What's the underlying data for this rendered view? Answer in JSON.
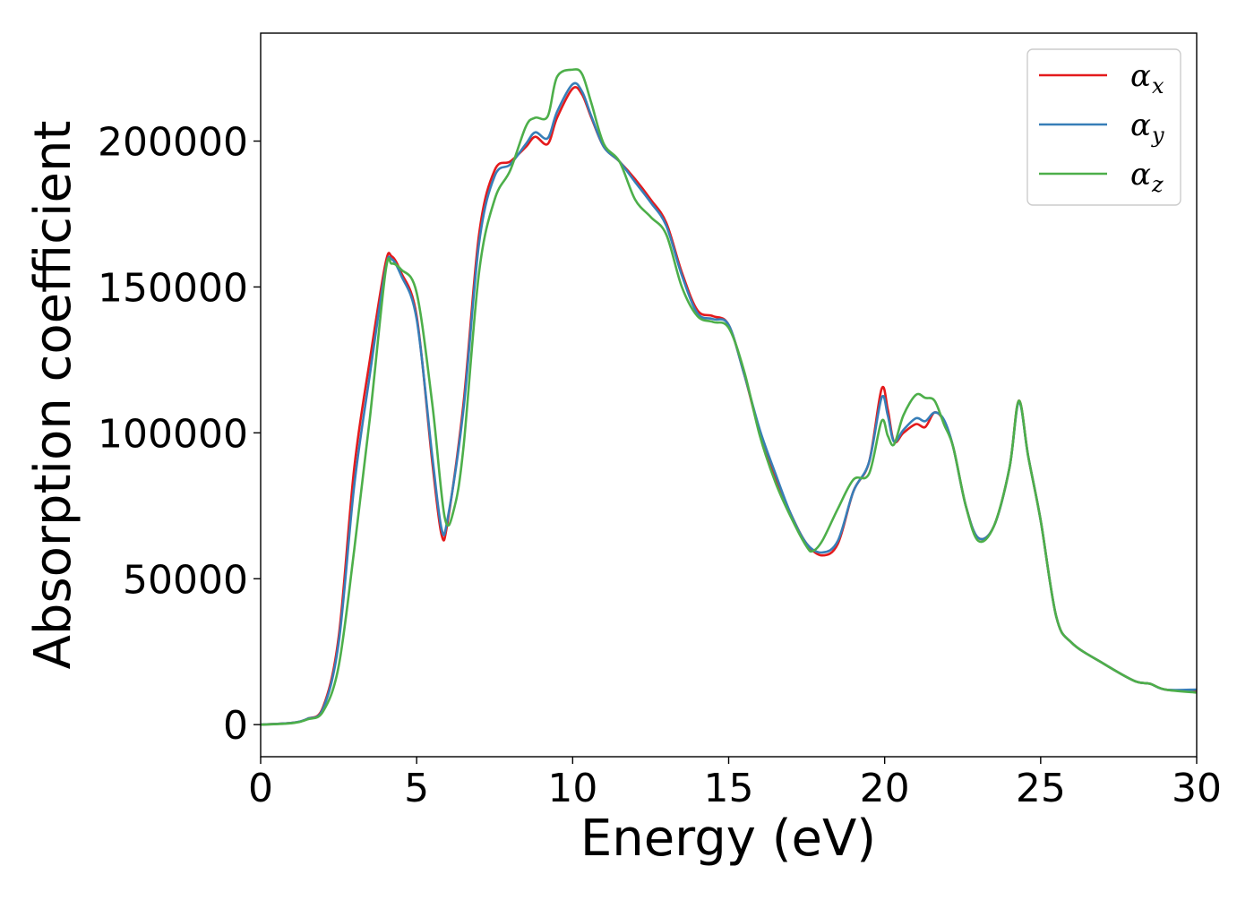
{
  "chart_data": {
    "type": "line",
    "title": "",
    "xlabel": "Energy (eV)",
    "ylabel": "Absorption coefficient",
    "xlim": [
      0,
      30
    ],
    "ylim": [
      -11000,
      237000
    ],
    "xticks": [
      0,
      5,
      10,
      15,
      20,
      25,
      30
    ],
    "xtick_labels": [
      "0",
      "5",
      "10",
      "15",
      "20",
      "25",
      "30"
    ],
    "yticks": [
      0,
      50000,
      100000,
      150000,
      200000
    ],
    "ytick_labels": [
      "0",
      "50000",
      "100000",
      "150000",
      "200000"
    ],
    "grid": false,
    "legend_position": "top-right",
    "series": [
      {
        "name": "x",
        "color": "#e41a1c",
        "x": [
          0,
          1,
          1.5,
          2,
          2.5,
          3,
          3.5,
          4,
          4.2,
          4.5,
          5,
          5.5,
          5.8,
          6,
          6.5,
          7,
          7.5,
          8,
          8.5,
          8.8,
          9.2,
          9.5,
          10,
          10.3,
          10.6,
          11,
          11.5,
          12,
          12.5,
          13,
          13.5,
          14,
          14.5,
          15,
          15.5,
          16,
          16.5,
          17,
          17.5,
          18,
          18.5,
          19,
          19.5,
          19.9,
          20.1,
          20.3,
          20.6,
          21,
          21.3,
          21.6,
          21.9,
          22.2,
          22.6,
          23,
          23.5,
          24,
          24.3,
          24.6,
          25,
          25.5,
          26,
          27,
          28,
          28.5,
          29,
          30
        ],
        "y": [
          0,
          600,
          2000,
          6000,
          30000,
          88000,
          125000,
          158000,
          160500,
          155000,
          140000,
          90000,
          65000,
          70000,
          110000,
          168000,
          190000,
          193000,
          198000,
          201500,
          199000,
          208000,
          218000,
          216000,
          208000,
          198000,
          193000,
          187000,
          180000,
          172000,
          155000,
          142000,
          140000,
          137000,
          120000,
          100000,
          85000,
          72000,
          62000,
          58000,
          62000,
          80000,
          90000,
          115000,
          108000,
          97000,
          100000,
          103000,
          102000,
          107000,
          104000,
          95000,
          75000,
          64000,
          68000,
          88000,
          111000,
          92000,
          70000,
          37000,
          28000,
          21000,
          15000,
          14000,
          12000,
          11500
        ]
      },
      {
        "name": "y",
        "color": "#377eb8",
        "x": [
          0,
          1,
          1.5,
          2,
          2.5,
          3,
          3.5,
          4,
          4.2,
          4.5,
          5,
          5.5,
          5.8,
          6,
          6.5,
          7,
          7.5,
          8,
          8.5,
          8.8,
          9.2,
          9.5,
          10,
          10.3,
          10.6,
          11,
          11.5,
          12,
          12.5,
          13,
          13.5,
          14,
          14.5,
          15,
          15.5,
          16,
          16.5,
          17,
          17.5,
          18,
          18.5,
          19,
          19.5,
          19.9,
          20.1,
          20.3,
          20.6,
          21,
          21.3,
          21.6,
          21.9,
          22.2,
          22.6,
          23,
          23.5,
          24,
          24.3,
          24.6,
          25,
          25.5,
          26,
          27,
          28,
          28.5,
          29,
          30
        ],
        "y": [
          0,
          600,
          2000,
          5500,
          28000,
          82000,
          120000,
          156000,
          159500,
          154000,
          139000,
          92000,
          67000,
          71000,
          108000,
          165000,
          188000,
          192000,
          199000,
          203000,
          201000,
          210000,
          219500,
          217000,
          208500,
          198000,
          193000,
          186000,
          179000,
          171000,
          154000,
          141000,
          139000,
          137000,
          120000,
          101000,
          86000,
          72000,
          62000,
          59000,
          63000,
          80000,
          90000,
          112000,
          106000,
          97000,
          101000,
          105000,
          104000,
          107000,
          104500,
          95000,
          75000,
          64000,
          68000,
          88000,
          110500,
          92000,
          70000,
          37000,
          28000,
          21000,
          15000,
          14000,
          12000,
          12000
        ]
      },
      {
        "name": "z",
        "color": "#4daf4a",
        "x": [
          0,
          1,
          1.5,
          2,
          2.5,
          3,
          3.5,
          4,
          4.2,
          4.5,
          5,
          5.5,
          5.9,
          6.2,
          6.5,
          7,
          7.5,
          8,
          8.5,
          8.8,
          9.2,
          9.5,
          10,
          10.3,
          10.6,
          11,
          11.5,
          12,
          12.5,
          13,
          13.5,
          14,
          14.5,
          15,
          15.5,
          16,
          16.5,
          17,
          17.5,
          17.7,
          18,
          18.5,
          19,
          19.5,
          19.9,
          20.1,
          20.3,
          20.6,
          21,
          21.3,
          21.6,
          21.9,
          22.2,
          22.6,
          23,
          23.5,
          24,
          24.3,
          24.6,
          25,
          25.5,
          26,
          27,
          28,
          28.5,
          29,
          30
        ],
        "y": [
          0,
          500,
          1800,
          4500,
          20000,
          60000,
          105000,
          155000,
          158000,
          156000,
          148000,
          110000,
          71000,
          74000,
          95000,
          155000,
          180000,
          190000,
          205000,
          208000,
          208500,
          222000,
          224500,
          223000,
          213000,
          199000,
          193000,
          180000,
          174000,
          168000,
          150000,
          140000,
          138000,
          136000,
          121000,
          99000,
          83000,
          71000,
          61000,
          59500,
          63000,
          74000,
          84000,
          86000,
          104000,
          99000,
          96000,
          106000,
          113000,
          112000,
          111000,
          103000,
          95000,
          75000,
          63000,
          68000,
          88000,
          111000,
          92000,
          70000,
          37000,
          28000,
          21000,
          15000,
          14000,
          12000,
          11000
        ]
      }
    ]
  }
}
